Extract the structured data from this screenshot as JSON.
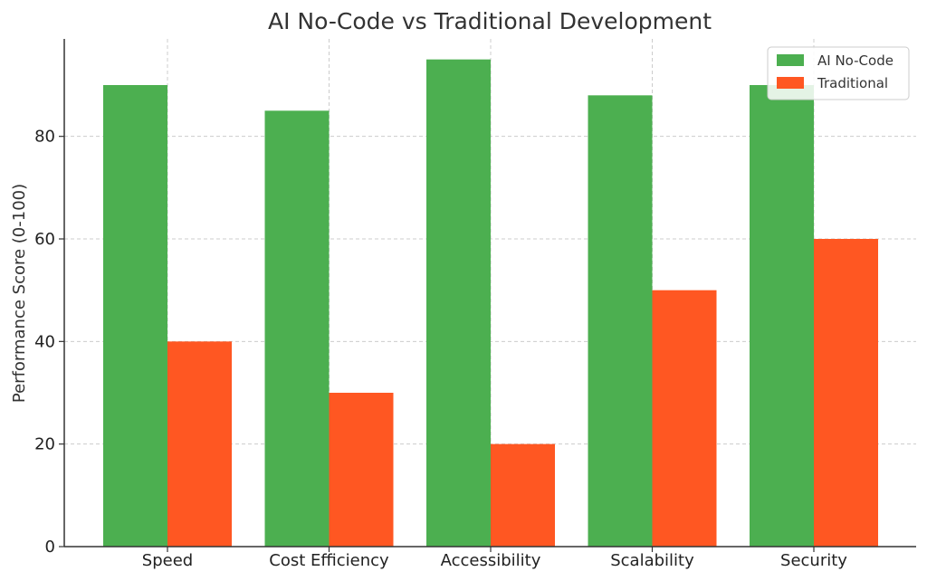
{
  "chart_data": {
    "type": "bar",
    "title": "AI No-Code vs Traditional Development",
    "ylabel": "Performance Score (0-100)",
    "xlabel": "",
    "categories": [
      "Speed",
      "Cost Efficiency",
      "Accessibility",
      "Scalability",
      "Security"
    ],
    "series": [
      {
        "name": "AI No-Code",
        "values": [
          90,
          85,
          95,
          88,
          90
        ],
        "color": "#4caf50"
      },
      {
        "name": "Traditional",
        "values": [
          40,
          30,
          20,
          50,
          60
        ],
        "color": "#ff5722"
      }
    ],
    "ylim": [
      0,
      99
    ],
    "yticks": [
      0,
      20,
      40,
      60,
      80
    ],
    "grid": true,
    "legend_position": "top-right"
  }
}
